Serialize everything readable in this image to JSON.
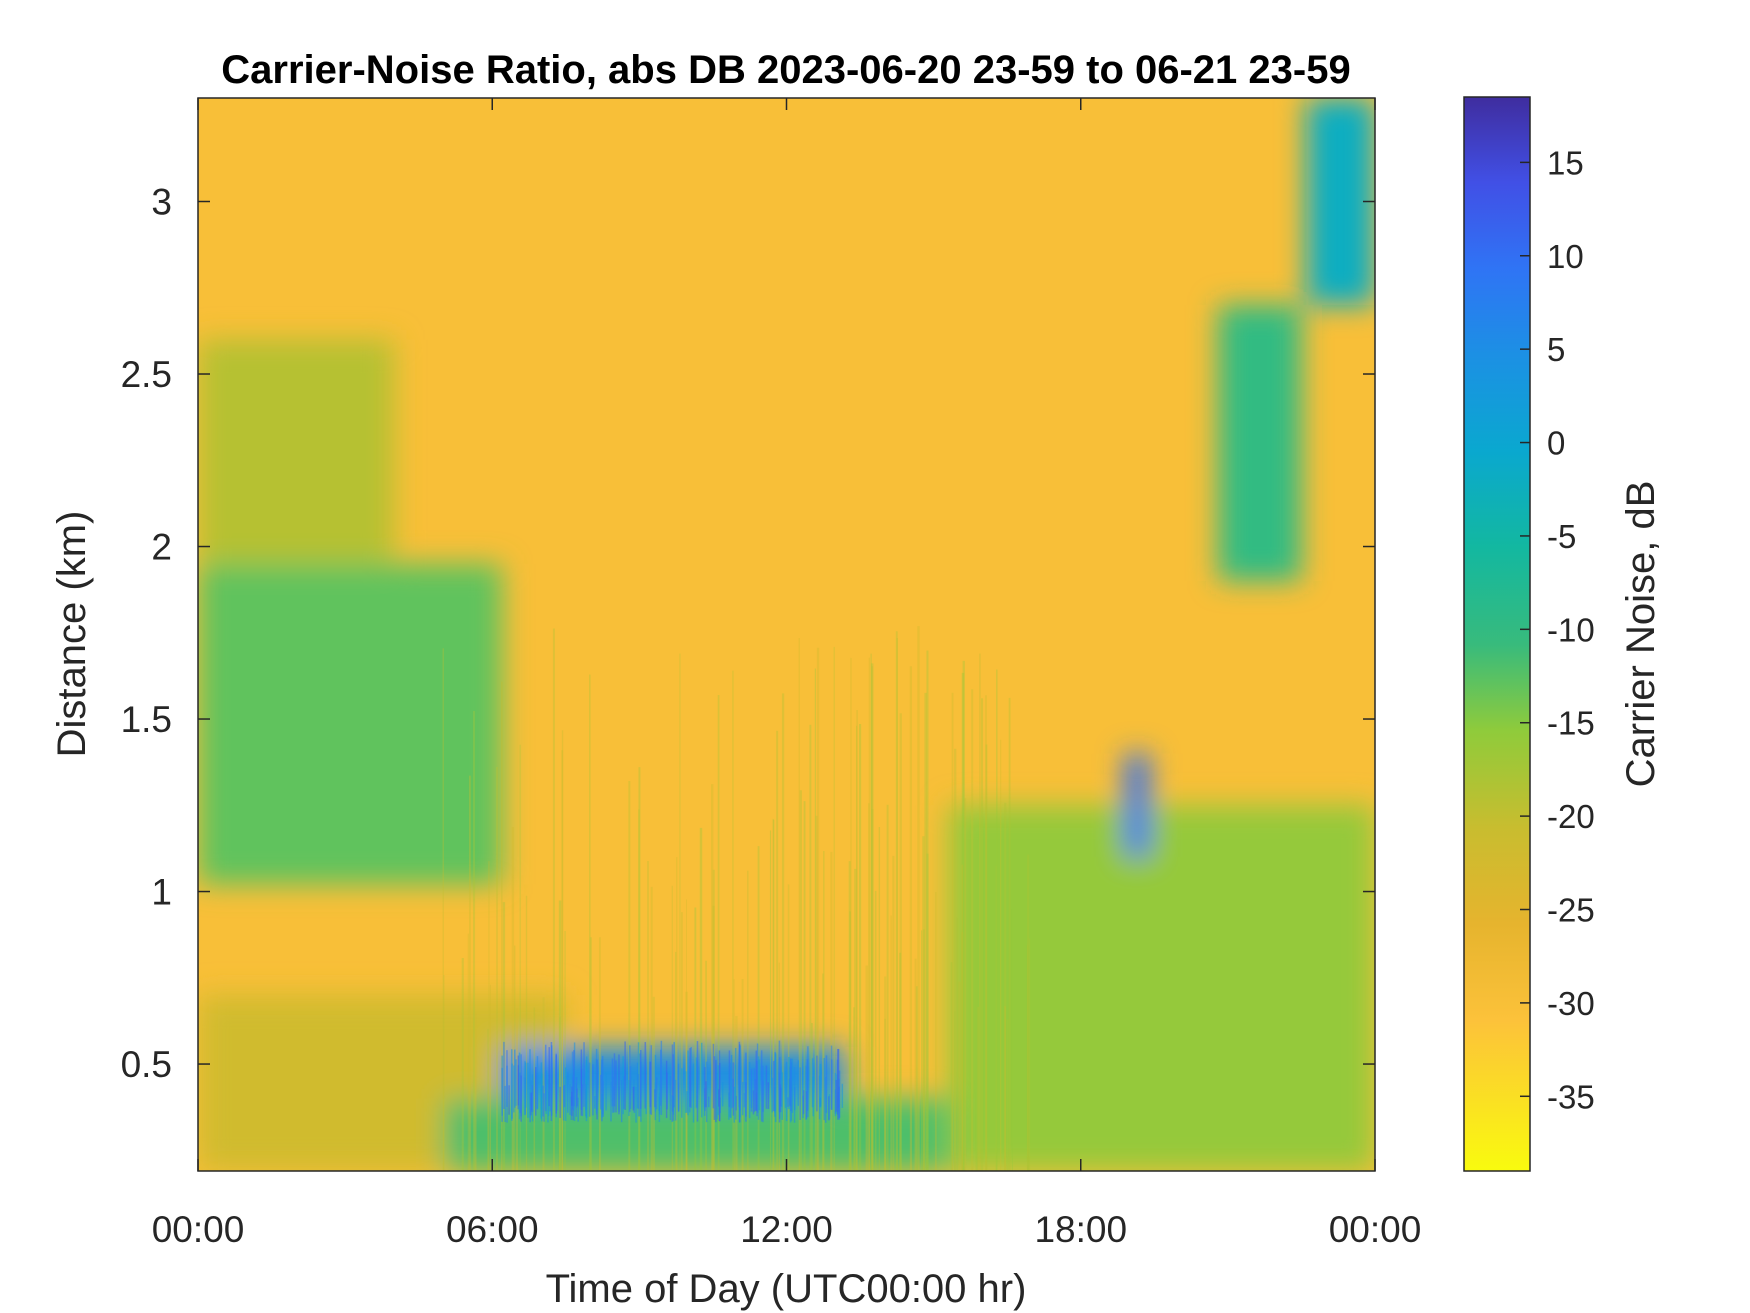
{
  "chart_data": {
    "type": "heatmap",
    "title": "Carrier-Noise Ratio, abs DB 2023-06-20 23-59 to 06-21 23-59",
    "xlabel": "Time of Day (UTC00:00 hr)",
    "ylabel": "Distance (km)",
    "colorbar_label": "Carrier Noise, dB",
    "colormap": "parula-reversed",
    "x_ticks": [
      {
        "value": 0,
        "label": "00:00"
      },
      {
        "value": 6,
        "label": "06:00"
      },
      {
        "value": 12,
        "label": "12:00"
      },
      {
        "value": 18,
        "label": "18:00"
      },
      {
        "value": 24,
        "label": "00:00"
      }
    ],
    "xlim": [
      0,
      24
    ],
    "y_ticks": [
      {
        "value": 0.5,
        "label": "0.5"
      },
      {
        "value": 1,
        "label": "1"
      },
      {
        "value": 1.5,
        "label": "1.5"
      },
      {
        "value": 2,
        "label": "2"
      },
      {
        "value": 2.5,
        "label": "2.5"
      },
      {
        "value": 3,
        "label": "3"
      }
    ],
    "ylim": [
      0.19,
      3.3
    ],
    "clim": [
      -39,
      18.5
    ],
    "colorbar_ticks": [
      {
        "value": 15,
        "label": "15"
      },
      {
        "value": 10,
        "label": "10"
      },
      {
        "value": 5,
        "label": "5"
      },
      {
        "value": 0,
        "label": "0"
      },
      {
        "value": -5,
        "label": "-5"
      },
      {
        "value": -10,
        "label": "-10"
      },
      {
        "value": -15,
        "label": "-15"
      },
      {
        "value": -20,
        "label": "-20"
      },
      {
        "value": -25,
        "label": "-25"
      },
      {
        "value": -30,
        "label": "-30"
      },
      {
        "value": -35,
        "label": "-35"
      }
    ],
    "background_value": -30,
    "regions": [
      {
        "name": "night-boundary-layer",
        "x": [
          0,
          6.2
        ],
        "y": [
          1.02,
          1.95
        ],
        "value": -13
      },
      {
        "name": "night-upper-mixed",
        "x": [
          0,
          4.0
        ],
        "y": [
          1.95,
          2.6
        ],
        "value": -19
      },
      {
        "name": "night-lower-layer",
        "x": [
          0,
          7.5
        ],
        "y": [
          0.19,
          0.7
        ],
        "value": -22
      },
      {
        "name": "morning-strong-layer",
        "x": [
          6.2,
          13.2
        ],
        "y": [
          0.35,
          0.55
        ],
        "value": 5
      },
      {
        "name": "morning-layer-below",
        "x": [
          5.0,
          15.3
        ],
        "y": [
          0.19,
          0.4
        ],
        "value": -12
      },
      {
        "name": "afternoon-boundary-layer",
        "x": [
          15.3,
          24
        ],
        "y": [
          0.19,
          1.25
        ],
        "value": -16
      },
      {
        "name": "evening-strong-cell",
        "x": [
          18.9,
          19.4
        ],
        "y": [
          1.1,
          1.4
        ],
        "value": 10
      },
      {
        "name": "evening-elevated-layer",
        "x": [
          20.8,
          22.5
        ],
        "y": [
          1.9,
          2.7
        ],
        "value": -10
      },
      {
        "name": "late-night-upper-signal",
        "x": [
          22.6,
          24
        ],
        "y": [
          2.7,
          3.3
        ],
        "value": -2
      }
    ]
  }
}
